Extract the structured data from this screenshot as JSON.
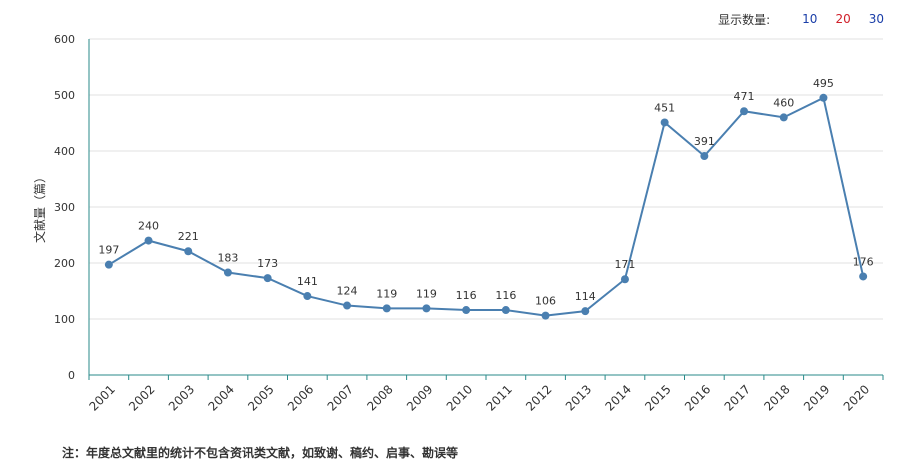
{
  "display_control": {
    "label": "显示数量:",
    "options": [
      {
        "label": "10",
        "color": "#1a3ea8"
      },
      {
        "label": "20",
        "color": "#d0202a"
      },
      {
        "label": "30",
        "color": "#1a3ea8"
      }
    ]
  },
  "note": "注：年度总文献里的统计不包含资讯类文献，如致谢、稿约、启事、勘误等",
  "chart_data": {
    "type": "line",
    "ylabel": "文献量（篇）",
    "xlabel": "",
    "ylim": [
      0,
      600
    ],
    "yticks": [
      0,
      100,
      200,
      300,
      400,
      500,
      600
    ],
    "grid": true,
    "line_color": "#4a7fb0",
    "categories": [
      "2001",
      "2002",
      "2003",
      "2004",
      "2005",
      "2006",
      "2007",
      "2008",
      "2009",
      "2010",
      "2011",
      "2012",
      "2013",
      "2014",
      "2015",
      "2016",
      "2017",
      "2018",
      "2019",
      "2020"
    ],
    "series": [
      {
        "values": [
          197,
          240,
          221,
          183,
          173,
          141,
          124,
          119,
          119,
          116,
          116,
          106,
          114,
          171,
          451,
          391,
          471,
          460,
          495,
          176
        ]
      }
    ]
  }
}
